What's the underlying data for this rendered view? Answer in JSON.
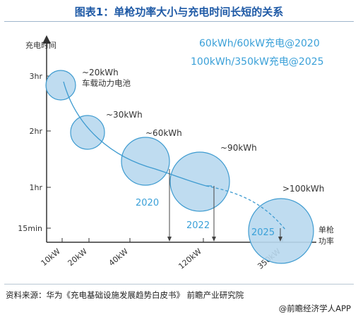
{
  "title": "图表1：单枪功率大小与充电时间长短的关系",
  "source": "资料来源：华为《充电基础设施发展趋势白皮书》 前瞻产业研究院",
  "brand": "@前瞻经济学人APP",
  "chart_data": {
    "type": "scatter",
    "ylabel": "充电时间",
    "xlabel": "单枪功率",
    "x_ticks": [
      "10kW",
      "20kW",
      "40kW",
      "120kW",
      "350kW"
    ],
    "y_ticks": [
      "3hr",
      "2hr",
      "1hr",
      "15min"
    ],
    "legend": [
      "60kWh/60kW充电@2020",
      "100kWh/350kW充电@2025"
    ],
    "points": [
      {
        "power": "10kW",
        "time": "3hr",
        "capacity": "~20kWh",
        "note": "车载动力电池"
      },
      {
        "power": "20kW",
        "time": "2hr",
        "capacity": "~30kWh",
        "note": ""
      },
      {
        "power": "40kW",
        "time": "1.5hr",
        "capacity": "~60kWh",
        "note": ""
      },
      {
        "power": "120kW",
        "time": "1hr",
        "capacity": "~90kWh",
        "note": ""
      },
      {
        "power": "350kW",
        "time": "15min",
        "capacity": ">100kWh",
        "note": ""
      }
    ],
    "markers": [
      {
        "label": "2020",
        "power": "40kW~120kW"
      },
      {
        "label": "2022",
        "power": "120kW"
      },
      {
        "label": "2025",
        "power": "350kW"
      }
    ],
    "colors": {
      "bubble_fill": "#b8d8ee",
      "bubble_stroke": "#3e9bd0",
      "curve": "#3e9bd0",
      "legend": "#3aa0d8",
      "axis": "#333333"
    }
  }
}
